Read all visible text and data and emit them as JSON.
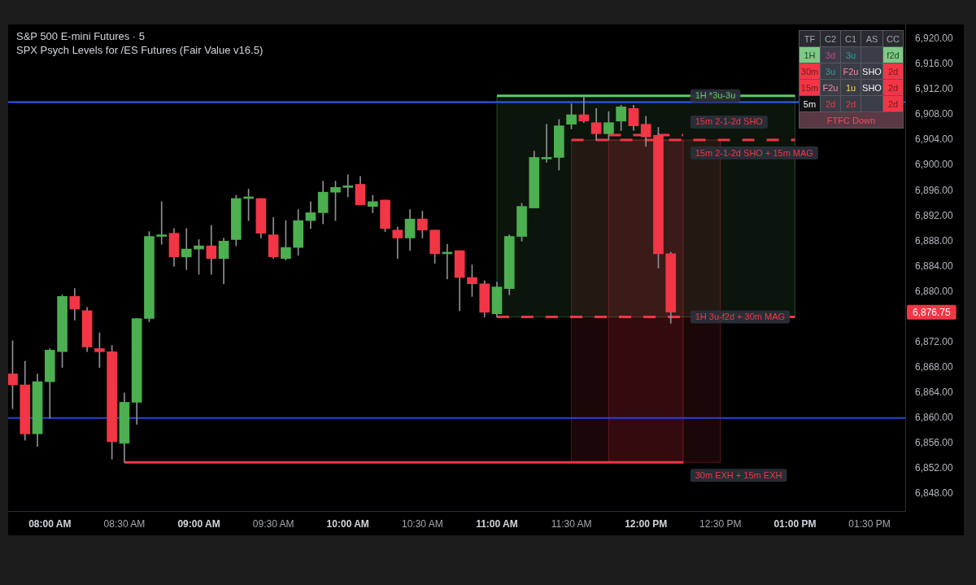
{
  "chart_data": [
    {
      "type": "candlestick",
      "title": "S&P 500 E-mini Futures · 5",
      "subtitle": "SPX Psych Levels for /ES Futures (Fair Value v16.5)",
      "x": [
        7.75,
        7.8333,
        7.9167,
        8,
        8.0833,
        8.1667,
        8.25,
        8.3333,
        8.4167,
        8.5,
        8.5833,
        8.6667,
        8.75,
        8.8333,
        8.9167,
        9,
        9.0833,
        9.1667,
        9.25,
        9.3333,
        9.4167,
        9.5,
        9.5833,
        9.6667,
        9.75,
        9.8333,
        9.9167,
        10,
        10.0833,
        10.1667,
        10.25,
        10.3333,
        10.4167,
        10.5,
        10.5833,
        10.6667,
        10.75,
        10.8333,
        10.9167,
        11,
        11.0833,
        11.1667,
        11.25,
        11.3333,
        11.4167,
        11.5,
        11.5833,
        11.6667,
        11.75,
        11.8333,
        11.9167,
        12,
        12.0833,
        12.1667
      ],
      "ohlc": [
        [
          6867,
          6872.25,
          6861.5,
          6865.25
        ],
        [
          6865.25,
          6869,
          6856.5,
          6857.5
        ],
        [
          6857.5,
          6867,
          6855.5,
          6865.75
        ],
        [
          6865.75,
          6871,
          6860,
          6870.75
        ],
        [
          6870.5,
          6879.5,
          6868,
          6879.25
        ],
        [
          6879.25,
          6880.5,
          6875.5,
          6877.25
        ],
        [
          6877,
          6877.5,
          6870.5,
          6871.25
        ],
        [
          6871,
          6873.5,
          6868,
          6870.5
        ],
        [
          6870.5,
          6871.5,
          6853.5,
          6856.25
        ],
        [
          6856,
          6864,
          6853,
          6862.5
        ],
        [
          6862.5,
          6875.75,
          6859,
          6875.75
        ],
        [
          6875.75,
          6889.5,
          6875.25,
          6888.75
        ],
        [
          6888.75,
          6894.25,
          6887.5,
          6889
        ],
        [
          6889.25,
          6890,
          6884,
          6885.5
        ],
        [
          6885.5,
          6890,
          6883.5,
          6886.75
        ],
        [
          6886.75,
          6888.25,
          6882.75,
          6887.25
        ],
        [
          6887.25,
          6890.5,
          6882.75,
          6885.25
        ],
        [
          6885.25,
          6888.5,
          6881.25,
          6888
        ],
        [
          6888.25,
          6895.25,
          6887.25,
          6894.75
        ],
        [
          6894.75,
          6896.25,
          6891.25,
          6895
        ],
        [
          6894.75,
          6894.75,
          6888.5,
          6889.25
        ],
        [
          6889,
          6891.75,
          6885.25,
          6885.5
        ],
        [
          6885.25,
          6891.25,
          6885,
          6887
        ],
        [
          6887,
          6893,
          6885.75,
          6891.25
        ],
        [
          6891.25,
          6894.25,
          6890,
          6892.5
        ],
        [
          6892.5,
          6897.5,
          6890.75,
          6895.75
        ],
        [
          6895.75,
          6897.5,
          6891.25,
          6896.5
        ],
        [
          6896.5,
          6898.5,
          6895,
          6896.75
        ],
        [
          6897,
          6898.25,
          6893.75,
          6893.75
        ],
        [
          6893.5,
          6895.25,
          6892.5,
          6894.25
        ],
        [
          6894.5,
          6894.5,
          6889.5,
          6890
        ],
        [
          6889.75,
          6890.25,
          6885.25,
          6888.5
        ],
        [
          6888.5,
          6893,
          6886.5,
          6891.5
        ],
        [
          6891.5,
          6892.75,
          6888.5,
          6889.75
        ],
        [
          6889.75,
          6889.75,
          6884.5,
          6886
        ],
        [
          6886,
          6887.5,
          6882,
          6886.25
        ],
        [
          6886.5,
          6886.5,
          6877,
          6882.25
        ],
        [
          6882.25,
          6884.25,
          6879.25,
          6881.25
        ],
        [
          6881.25,
          6881.75,
          6876,
          6876.75
        ],
        [
          6876.5,
          6881.5,
          6876,
          6880.75
        ],
        [
          6880.5,
          6889,
          6879.5,
          6888.75
        ],
        [
          6888.75,
          6894,
          6888,
          6893.5
        ],
        [
          6893.25,
          6902.25,
          6893.25,
          6901.25
        ],
        [
          6901,
          6906.5,
          6900.5,
          6901.25
        ],
        [
          6901.25,
          6907.25,
          6899.25,
          6906.25
        ],
        [
          6906.5,
          6909.75,
          6905.75,
          6908
        ],
        [
          6908,
          6910.75,
          6906.75,
          6907
        ],
        [
          6906.75,
          6909,
          6904,
          6905
        ],
        [
          6905,
          6908.5,
          6904,
          6906.75
        ],
        [
          6907,
          6909.5,
          6905.5,
          6909.25
        ],
        [
          6909,
          6909.5,
          6905.5,
          6906.25
        ],
        [
          6906.5,
          6907.75,
          6903,
          6904.5
        ],
        [
          6904.75,
          6906,
          6883.75,
          6886
        ],
        [
          6886,
          6886.25,
          6875,
          6876.75
        ]
      ],
      "colors": [
        "#f23645",
        "#f23645",
        "#4caf50",
        "#4caf50",
        "#4caf50",
        "#f23645",
        "#f23645",
        "#f23645",
        "#f23645",
        "#4caf50",
        "#4caf50",
        "#4caf50",
        "#4caf50",
        "#f23645",
        "#4caf50",
        "#4caf50",
        "#f23645",
        "#4caf50",
        "#4caf50",
        "#4caf50",
        "#f23645",
        "#f23645",
        "#4caf50",
        "#4caf50",
        "#4caf50",
        "#4caf50",
        "#4caf50",
        "#4caf50",
        "#f23645",
        "#4caf50",
        "#f23645",
        "#f23645",
        "#4caf50",
        "#f23645",
        "#f23645",
        "#4caf50",
        "#f23645",
        "#f23645",
        "#f23645",
        "#4caf50",
        "#4caf50",
        "#4caf50",
        "#4caf50",
        "#4caf50",
        "#4caf50",
        "#4caf50",
        "#f23645",
        "#f23645",
        "#4caf50",
        "#4caf50",
        "#f23645",
        "#f23645",
        "#f23645",
        "#f23645"
      ],
      "xlim": [
        7.72,
        13.74
      ],
      "xticks": [
        {
          "value": 8,
          "label": "08:00 AM"
        },
        {
          "value": 8.5,
          "label": "08:30 AM"
        },
        {
          "value": 9,
          "label": "09:00 AM"
        },
        {
          "value": 9.5,
          "label": "09:30 AM"
        },
        {
          "value": 10,
          "label": "10:00 AM"
        },
        {
          "value": 10.5,
          "label": "10:30 AM"
        },
        {
          "value": 11,
          "label": "11:00 AM"
        },
        {
          "value": 11.5,
          "label": "11:30 AM"
        },
        {
          "value": 12,
          "label": "12:00 PM"
        },
        {
          "value": 12.5,
          "label": "12:30 PM"
        },
        {
          "value": 13,
          "label": "01:00 PM"
        },
        {
          "value": 13.5,
          "label": "01:30 PM"
        }
      ],
      "ylim": [
        6845.3,
        6922.3
      ],
      "yticks": [
        {
          "value": 6848,
          "label": "6,848.00"
        },
        {
          "value": 6852,
          "label": "6,852.00"
        },
        {
          "value": 6856,
          "label": "6,856.00"
        },
        {
          "value": 6860,
          "label": "6,860.00"
        },
        {
          "value": 6864,
          "label": "6,864.00"
        },
        {
          "value": 6868,
          "label": "6,868.00"
        },
        {
          "value": 6872,
          "label": "6,872.00"
        },
        {
          "value": 6880,
          "label": "6,880.00"
        },
        {
          "value": 6884,
          "label": "6,884.00"
        },
        {
          "value": 6888,
          "label": "6,888.00"
        },
        {
          "value": 6892,
          "label": "6,892.00"
        },
        {
          "value": 6896,
          "label": "6,896.00"
        },
        {
          "value": 6900,
          "label": "6,900.00"
        },
        {
          "value": 6904,
          "label": "6,904.00"
        },
        {
          "value": 6908,
          "label": "6,908.00"
        },
        {
          "value": 6912,
          "label": "6,912.00"
        },
        {
          "value": 6916,
          "label": "6,916.00"
        },
        {
          "value": 6920,
          "label": "6,920.00"
        }
      ],
      "series": [
        {
          "type": "line",
          "name": "1H *3u-3u",
          "color": "#66c36a",
          "x": [
            11,
            13
          ],
          "values": [
            6911,
            6911
          ],
          "lower": [
            6876,
            6876
          ],
          "upper": [
            6911,
            6911
          ]
        },
        {
          "type": "line",
          "name": "15m 2-1-2d SHO",
          "color": "#f23645",
          "line_style": "dashed",
          "x": [
            11.75,
            12.25
          ],
          "values": [
            6904.8,
            6904.8
          ],
          "lower": [
            6853,
            6853
          ],
          "upper": [
            6904,
            6904
          ]
        },
        {
          "type": "line",
          "name": "15m 2-1-2d SHO + 15m MAG",
          "color": "#f23645",
          "line_style": "dashed",
          "x": [
            11.5,
            12.5,
            13
          ],
          "values": [
            6904,
            6904,
            6904
          ],
          "lower": [
            6853,
            6853,
            null
          ],
          "upper": [
            6904,
            6904,
            null
          ]
        },
        {
          "type": "line",
          "name": "1H 3u-f2d + 30m MAG",
          "color": "#f23645",
          "line_style": "dashed",
          "x": [
            11,
            13
          ],
          "values": [
            6876,
            6876
          ]
        },
        {
          "type": "line",
          "name": "30m EXH + 15m EXH",
          "color": "#f23645",
          "x": [
            8.5,
            12.25
          ],
          "values": [
            6853,
            6853
          ]
        }
      ],
      "ref_lines": [
        {
          "axis": "y",
          "value": 6910,
          "color": "#2962ff"
        },
        {
          "axis": "y",
          "value": 6860,
          "color": "#2447d6"
        }
      ],
      "annotations": [
        "6,876.75"
      ]
    },
    {
      "type": "other",
      "categories": [
        "TF",
        "C2",
        "C1",
        "AS",
        "CC"
      ],
      "cell_labels": [
        [
          "1H",
          "3d",
          "3u",
          null,
          "f2d"
        ],
        [
          "30m",
          "3u",
          "F2u",
          "SHO",
          "2d"
        ],
        [
          "15m",
          "F2u",
          "1u",
          "SHO",
          "2d"
        ],
        [
          "5m",
          "2d",
          "2d",
          null,
          "2d"
        ]
      ],
      "annotations": [
        "FTFC Down"
      ]
    }
  ]
}
